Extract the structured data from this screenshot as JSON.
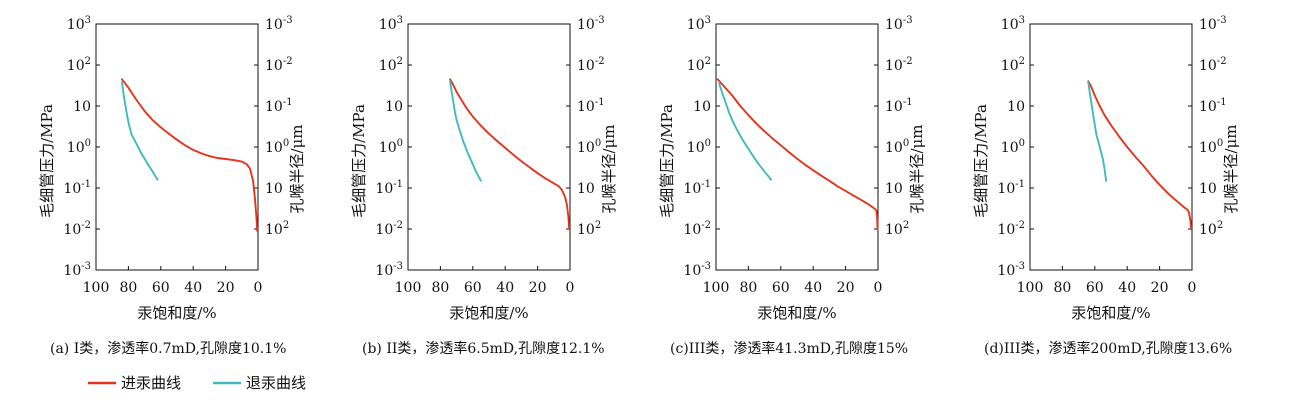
{
  "legend": {
    "items": [
      {
        "label": "进汞曲线",
        "color": "#e5341d"
      },
      {
        "label": "退汞曲线",
        "color": "#41b9c0"
      }
    ]
  },
  "chart_data": [
    {
      "type": "line",
      "caption": "(a) I类，渗透率0.7mD,孔隙度10.1%",
      "xlabel": "汞饱和度/%",
      "ylabel": "毛细管压力/MPa",
      "y2label": "孔喉半径/μm",
      "xlim": [
        100,
        0
      ],
      "xticks": [
        "100",
        "80",
        "60",
        "40",
        "20",
        "0"
      ],
      "yscale": "log",
      "ylim": [
        0.001,
        1000
      ],
      "yticks": [
        "10^-3",
        "10^-2",
        "10^-1",
        "10^0",
        "10",
        "10^2",
        "10^3"
      ],
      "y2ticks": [
        "10^2",
        "10",
        "10^0",
        "10^-1",
        "10^-2",
        "10^-3"
      ],
      "series": [
        {
          "name": "进汞曲线",
          "color": "#e5341d",
          "x": [
            84,
            80,
            75,
            70,
            65,
            60,
            55,
            50,
            45,
            40,
            35,
            30,
            25,
            20,
            15,
            10,
            7,
            5,
            3,
            2,
            1,
            0.5
          ],
          "y": [
            45,
            28,
            14,
            7.5,
            4.5,
            3.0,
            2.1,
            1.5,
            1.1,
            0.85,
            0.7,
            0.6,
            0.54,
            0.51,
            0.48,
            0.44,
            0.38,
            0.3,
            0.15,
            0.06,
            0.02,
            0.009
          ]
        },
        {
          "name": "退汞曲线",
          "color": "#41b9c0",
          "x": [
            84,
            83,
            82,
            81,
            80,
            78,
            75,
            72,
            68,
            65,
            62
          ],
          "y": [
            38,
            20,
            11,
            6.5,
            4,
            2,
            1.2,
            0.7,
            0.38,
            0.25,
            0.16
          ]
        }
      ]
    },
    {
      "type": "line",
      "caption": "(b) II类，渗透率6.5mD,孔隙度12.1%",
      "xlabel": "汞饱和度/%",
      "ylabel": "毛细管压力/MPa",
      "y2label": "孔喉半径/μm",
      "xlim": [
        100,
        0
      ],
      "xticks": [
        "100",
        "80",
        "60",
        "40",
        "20",
        "0"
      ],
      "yscale": "log",
      "ylim": [
        0.001,
        1000
      ],
      "yticks": [
        "10^-3",
        "10^-2",
        "10^-1",
        "10^0",
        "10",
        "10^2",
        "10^3"
      ],
      "y2ticks": [
        "10^2",
        "10",
        "10^0",
        "10^-1",
        "10^-2",
        "10^-3"
      ],
      "series": [
        {
          "name": "进汞曲线",
          "color": "#e5341d",
          "x": [
            74,
            72,
            70,
            67,
            64,
            60,
            55,
            50,
            45,
            40,
            35,
            30,
            25,
            20,
            15,
            10,
            7,
            5,
            3,
            2,
            1,
            0.5
          ],
          "y": [
            45,
            32,
            22,
            14,
            9,
            5.5,
            3.3,
            2.1,
            1.4,
            0.95,
            0.65,
            0.45,
            0.32,
            0.23,
            0.17,
            0.13,
            0.11,
            0.09,
            0.06,
            0.04,
            0.02,
            0.01
          ]
        },
        {
          "name": "退汞曲线",
          "color": "#41b9c0",
          "x": [
            74,
            73,
            72,
            71,
            70,
            68,
            66,
            63,
            60,
            58,
            55
          ],
          "y": [
            40,
            22,
            12,
            7,
            4.5,
            2.5,
            1.4,
            0.7,
            0.38,
            0.25,
            0.15
          ]
        }
      ]
    },
    {
      "type": "line",
      "caption": "(c)III类，渗透率41.3mD,孔隙度15%",
      "xlabel": "汞饱和度/%",
      "ylabel": "毛细管压力/MPa",
      "y2label": "孔喉半径/μm",
      "xlim": [
        100,
        0
      ],
      "xticks": [
        "100",
        "80",
        "60",
        "40",
        "20",
        "0"
      ],
      "yscale": "log",
      "ylim": [
        0.001,
        1000
      ],
      "yticks": [
        "10^-3",
        "10^-2",
        "10^-1",
        "10^0",
        "10",
        "10^2",
        "10^3"
      ],
      "y2ticks": [
        "10^2",
        "10",
        "10^0",
        "10^-1",
        "10^-2",
        "10^-3"
      ],
      "series": [
        {
          "name": "进汞曲线",
          "color": "#e5341d",
          "x": [
            99,
            95,
            90,
            85,
            80,
            75,
            70,
            65,
            60,
            55,
            50,
            45,
            40,
            35,
            30,
            25,
            20,
            15,
            10,
            5,
            2,
            1,
            0.5,
            0.3
          ],
          "y": [
            45,
            30,
            18,
            10,
            6,
            3.7,
            2.4,
            1.6,
            1.1,
            0.75,
            0.52,
            0.37,
            0.27,
            0.2,
            0.15,
            0.11,
            0.085,
            0.065,
            0.05,
            0.038,
            0.031,
            0.028,
            0.018,
            0.01
          ]
        },
        {
          "name": "退汞曲线",
          "color": "#41b9c0",
          "x": [
            98,
            96,
            94,
            92,
            90,
            87,
            84,
            80,
            75,
            70,
            66
          ],
          "y": [
            35,
            20,
            12,
            7,
            4.5,
            2.6,
            1.6,
            0.9,
            0.45,
            0.25,
            0.16
          ]
        }
      ]
    },
    {
      "type": "line",
      "caption": "(d)III类，渗透率200mD,孔隙度13.6%",
      "xlabel": "汞饱和度/%",
      "ylabel": "毛细管压力/MPa",
      "y2label": "孔喉半径/μm",
      "xlim": [
        100,
        0
      ],
      "xticks": [
        "100",
        "80",
        "60",
        "40",
        "20",
        "0"
      ],
      "yscale": "log",
      "ylim": [
        0.001,
        1000
      ],
      "yticks": [
        "10^-3",
        "10^-2",
        "10^-1",
        "10^0",
        "10",
        "10^2",
        "10^3"
      ],
      "y2ticks": [
        "10^2",
        "10",
        "10^0",
        "10^-1",
        "10^-2",
        "10^-3"
      ],
      "series": [
        {
          "name": "进汞曲线",
          "color": "#e5341d",
          "x": [
            64,
            62,
            60,
            57,
            54,
            50,
            45,
            40,
            35,
            30,
            25,
            20,
            15,
            10,
            7,
            5,
            3,
            2,
            1,
            0.5
          ],
          "y": [
            40,
            28,
            18,
            10,
            6,
            3.4,
            1.8,
            1.0,
            0.58,
            0.35,
            0.2,
            0.12,
            0.075,
            0.05,
            0.04,
            0.034,
            0.03,
            0.026,
            0.016,
            0.01
          ]
        },
        {
          "name": "退汞曲线",
          "color": "#41b9c0",
          "x": [
            64,
            63,
            62,
            61,
            60,
            59,
            57,
            55,
            54,
            53
          ],
          "y": [
            38,
            20,
            11,
            6,
            3.5,
            2,
            1,
            0.5,
            0.3,
            0.15
          ]
        }
      ]
    }
  ]
}
